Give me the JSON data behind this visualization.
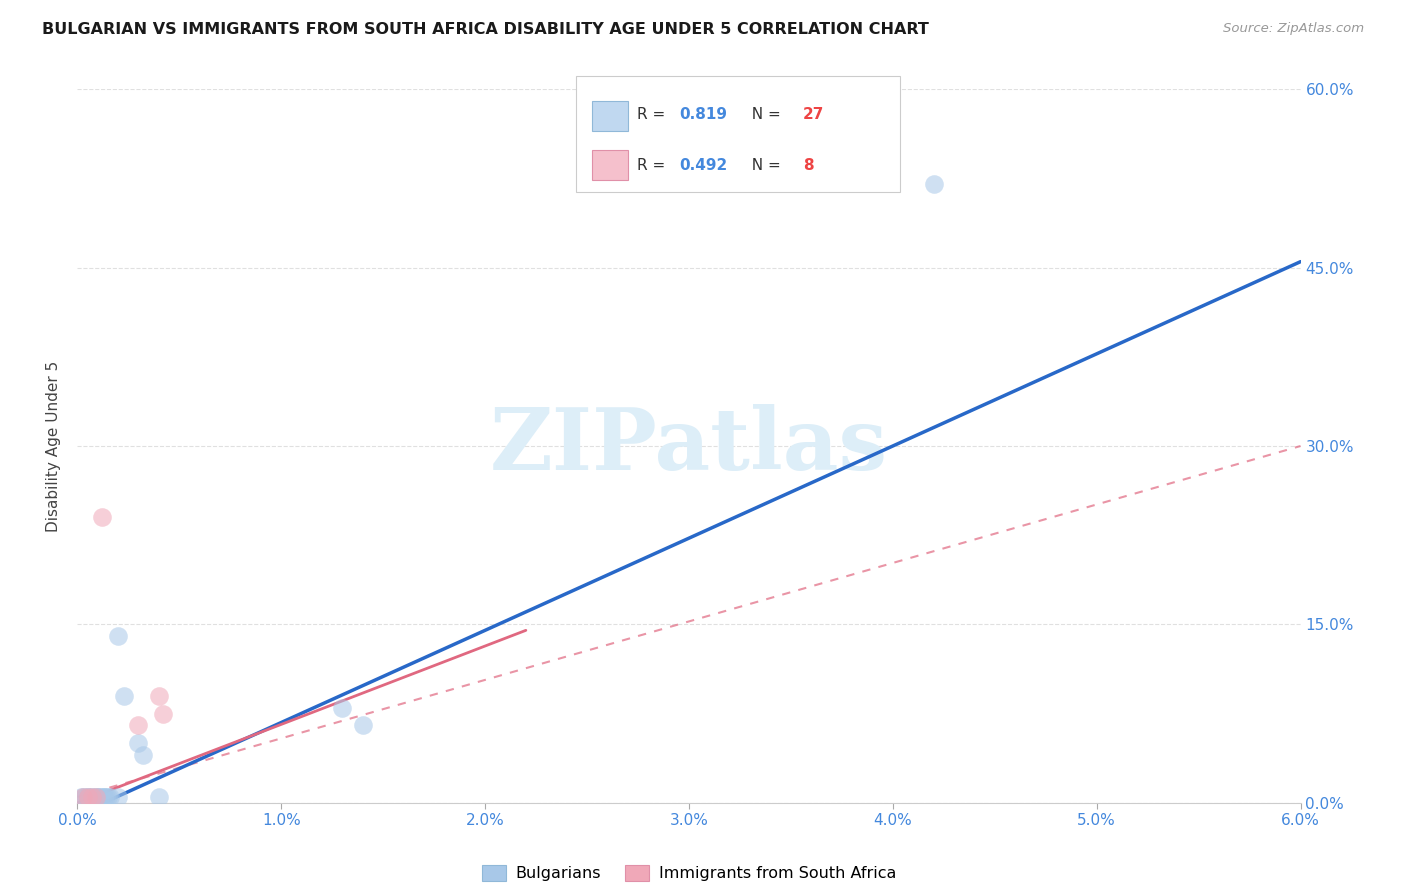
{
  "title": "BULGARIAN VS IMMIGRANTS FROM SOUTH AFRICA DISABILITY AGE UNDER 5 CORRELATION CHART",
  "source": "Source: ZipAtlas.com",
  "ylabel": "Disability Age Under 5",
  "xlim": [
    0.0,
    0.06
  ],
  "ylim": [
    0.0,
    0.6
  ],
  "xtick_labels": [
    "0.0%",
    "1.0%",
    "2.0%",
    "3.0%",
    "4.0%",
    "5.0%",
    "6.0%"
  ],
  "xtick_vals": [
    0.0,
    0.01,
    0.02,
    0.03,
    0.04,
    0.05,
    0.06
  ],
  "ytick_labels": [
    "0.0%",
    "15.0%",
    "30.0%",
    "45.0%",
    "60.0%"
  ],
  "ytick_vals": [
    0.0,
    0.15,
    0.3,
    0.45,
    0.6
  ],
  "r_bulgarian": 0.819,
  "n_bulgarian": 27,
  "r_sa": 0.492,
  "n_sa": 8,
  "bulgarian_color": "#a8c8e8",
  "sa_color": "#f0a8b8",
  "trend_bulgarian_color": "#2868c8",
  "trend_sa_color": "#e06880",
  "watermark_text": "ZIPatlas",
  "watermark_color": "#ddeef8",
  "legend_border_color": "#cccccc",
  "legend_bg": "#ffffff",
  "r_label_color": "#333333",
  "r_value_color": "#4488dd",
  "n_value_color": "#ee4444",
  "axis_tick_color": "#4488dd",
  "title_color": "#1a1a1a",
  "source_color": "#999999",
  "ylabel_color": "#444444",
  "grid_color": "#e0e0e0",
  "bg_color": "#ffffff",
  "trend_blue_x0": 0.0,
  "trend_blue_y0": -0.01,
  "trend_blue_x1": 0.06,
  "trend_blue_y1": 0.455,
  "trend_pink_x0": 0.0,
  "trend_pink_y0": 0.005,
  "trend_pink_x1": 0.06,
  "trend_pink_y1": 0.3,
  "trend_pink_solid_x0": 0.0,
  "trend_pink_solid_y0": 0.0,
  "trend_pink_solid_x1": 0.022,
  "trend_pink_solid_y1": 0.145,
  "bulgarian_x": [
    0.0002,
    0.0003,
    0.0004,
    0.0005,
    0.0005,
    0.0006,
    0.0007,
    0.0008,
    0.0009,
    0.001,
    0.001,
    0.0011,
    0.0012,
    0.0013,
    0.0013,
    0.0014,
    0.0015,
    0.0016,
    0.002,
    0.002,
    0.0023,
    0.003,
    0.0032,
    0.004,
    0.013,
    0.014,
    0.042
  ],
  "bulgarian_y": [
    0.005,
    0.005,
    0.005,
    0.005,
    0.005,
    0.005,
    0.005,
    0.005,
    0.005,
    0.005,
    0.005,
    0.005,
    0.005,
    0.005,
    0.005,
    0.005,
    0.005,
    0.005,
    0.005,
    0.14,
    0.09,
    0.05,
    0.04,
    0.005,
    0.08,
    0.065,
    0.52
  ],
  "sa_x": [
    0.0003,
    0.0005,
    0.0007,
    0.0009,
    0.0012,
    0.003,
    0.004,
    0.0042
  ],
  "sa_y": [
    0.005,
    0.005,
    0.005,
    0.005,
    0.24,
    0.065,
    0.09,
    0.075
  ]
}
